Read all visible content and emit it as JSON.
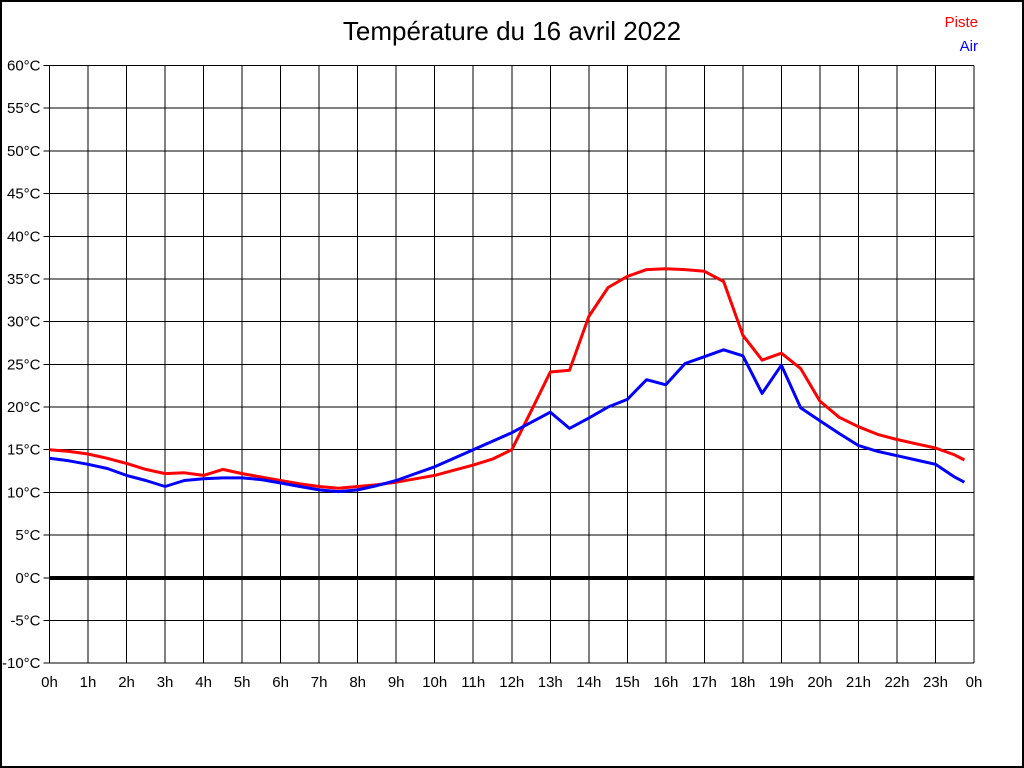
{
  "page": {
    "background_color": "#ffffff",
    "frame_border_color": "#000000"
  },
  "header": {
    "title": "Température du 16 avril 2022"
  },
  "legend": {
    "items": [
      {
        "label": "Piste",
        "color": "#ff0000"
      },
      {
        "label": "Air",
        "color": "#0000ff"
      }
    ]
  },
  "chart_data": {
    "type": "line",
    "title": "Température du 16 avril 2022",
    "xlabel": "",
    "ylabel": "",
    "xlim": [
      0,
      24
    ],
    "ylim": [
      -10,
      60
    ],
    "grid": true,
    "grid_color": "#000000",
    "zero_line": {
      "value": 0,
      "bold": true,
      "color": "#000000"
    },
    "legend_position": "top-right",
    "y_tick_values": [
      60,
      55,
      50,
      45,
      40,
      35,
      30,
      25,
      20,
      15,
      10,
      5,
      0,
      -5,
      -10
    ],
    "y_tick_labels": [
      "60°C",
      "55°C",
      "50°C",
      "45°C",
      "40°C",
      "35°C",
      "30°C",
      "25°C",
      "20°C",
      "15°C",
      "10°C",
      "5°C",
      "0°C",
      "-5°C",
      "-10°C"
    ],
    "x_tick_values": [
      0,
      1,
      2,
      3,
      4,
      5,
      6,
      7,
      8,
      9,
      10,
      11,
      12,
      13,
      14,
      15,
      16,
      17,
      18,
      19,
      20,
      21,
      22,
      23,
      24
    ],
    "x_tick_labels": [
      "0h",
      "1h",
      "2h",
      "3h",
      "4h",
      "5h",
      "6h",
      "7h",
      "8h",
      "9h",
      "10h",
      "11h",
      "12h",
      "13h",
      "14h",
      "15h",
      "16h",
      "17h",
      "18h",
      "19h",
      "20h",
      "21h",
      "22h",
      "23h",
      "0h"
    ],
    "x_hours": [
      0,
      0.5,
      1,
      1.5,
      2,
      2.5,
      3,
      3.5,
      4,
      4.5,
      5,
      5.5,
      6,
      6.5,
      7,
      7.5,
      8,
      8.5,
      9,
      9.5,
      10,
      10.5,
      11,
      11.5,
      12,
      12.5,
      13,
      13.5,
      14,
      14.5,
      15,
      15.5,
      16,
      16.5,
      17,
      17.5,
      18,
      18.5,
      19,
      19.5,
      20,
      20.5,
      21,
      21.5,
      22,
      22.5,
      23,
      23.5,
      23.75
    ],
    "series": [
      {
        "name": "Piste",
        "color": "#ff0000",
        "values": [
          15.0,
          14.8,
          14.5,
          14.0,
          13.4,
          12.7,
          12.2,
          12.3,
          12.0,
          12.7,
          12.2,
          11.8,
          11.4,
          11.0,
          10.7,
          10.5,
          10.7,
          10.9,
          11.2,
          11.6,
          12.0,
          12.6,
          13.2,
          13.9,
          15.0,
          19.5,
          24.1,
          24.3,
          30.6,
          34.0,
          35.3,
          36.1,
          36.2,
          36.1,
          35.9,
          34.7,
          28.4,
          25.5,
          26.3,
          24.5,
          20.7,
          18.8,
          17.7,
          16.8,
          16.2,
          15.7,
          15.2,
          14.4,
          13.8
        ]
      },
      {
        "name": "Air",
        "color": "#0000ff",
        "values": [
          14.0,
          13.7,
          13.3,
          12.8,
          12.0,
          11.4,
          10.7,
          11.4,
          11.6,
          11.7,
          11.7,
          11.5,
          11.1,
          10.7,
          10.3,
          10.1,
          10.3,
          10.8,
          11.4,
          12.2,
          13.0,
          14.0,
          15.0,
          16.0,
          17.0,
          18.2,
          19.4,
          17.5,
          18.7,
          20.0,
          20.9,
          23.2,
          22.6,
          25.1,
          25.9,
          26.7,
          26.0,
          21.6,
          24.9,
          19.9,
          18.4,
          16.9,
          15.5,
          14.8,
          14.3,
          13.8,
          13.3,
          11.8,
          11.2
        ]
      }
    ]
  }
}
